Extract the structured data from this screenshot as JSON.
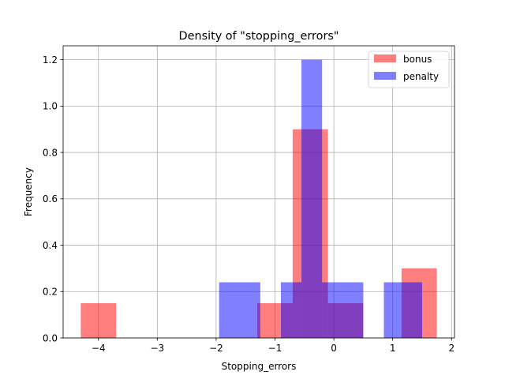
{
  "chart_data": {
    "type": "bar",
    "title": "Density of \"stopping_errors\"",
    "xlabel": "Stopping_errors",
    "ylabel": "Frequency",
    "xlim": [
      -4.6,
      2.05
    ],
    "ylim": [
      0,
      1.26
    ],
    "xticks": [
      -4,
      -3,
      -2,
      -1,
      0,
      1,
      2
    ],
    "xtick_labels": [
      "−4",
      "−3",
      "−2",
      "−1",
      "0",
      "1",
      "2"
    ],
    "yticks": [
      0.0,
      0.2,
      0.4,
      0.6,
      0.8,
      1.0,
      1.2
    ],
    "ytick_labels": [
      "0.0",
      "0.2",
      "0.4",
      "0.6",
      "0.8",
      "1.0",
      "1.2"
    ],
    "grid": true,
    "legend_position": "upper right",
    "series": [
      {
        "name": "bonus",
        "color": "#ff0000",
        "opacity": 0.5,
        "bins": [
          {
            "x0": -4.3,
            "x1": -3.7,
            "y": 0.15
          },
          {
            "x0": -1.3,
            "x1": -0.7,
            "y": 0.15
          },
          {
            "x0": -0.7,
            "x1": -0.1,
            "y": 0.9
          },
          {
            "x0": -0.1,
            "x1": 0.5,
            "y": 0.15
          },
          {
            "x0": 1.15,
            "x1": 1.75,
            "y": 0.3
          }
        ]
      },
      {
        "name": "penalty",
        "color": "#0000ff",
        "opacity": 0.5,
        "bins": [
          {
            "x0": -1.95,
            "x1": -1.25,
            "y": 0.24
          },
          {
            "x0": -0.9,
            "x1": -0.55,
            "y": 0.24
          },
          {
            "x0": -0.55,
            "x1": -0.2,
            "y": 1.2
          },
          {
            "x0": -0.2,
            "x1": 0.1,
            "y": 0.24
          },
          {
            "x0": 0.1,
            "x1": 0.5,
            "y": 0.24
          },
          {
            "x0": 0.85,
            "x1": 1.5,
            "y": 0.24
          }
        ]
      }
    ]
  }
}
